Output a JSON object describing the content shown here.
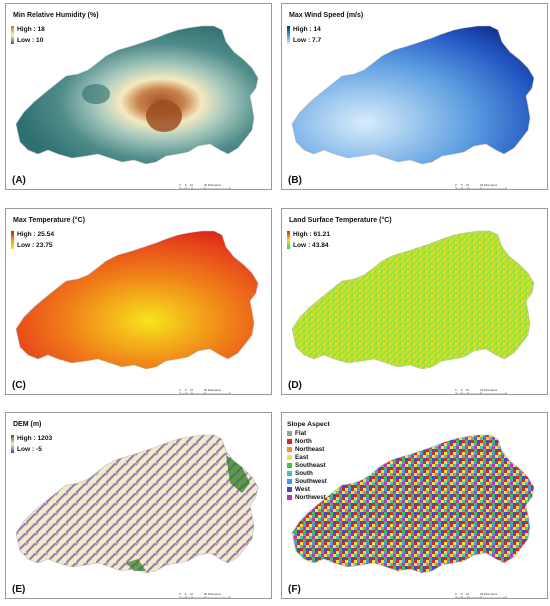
{
  "panels": [
    {
      "id": "A",
      "title": "Min Relative Humidity (%)",
      "high": "High : 18",
      "low": "Low : 10",
      "label": "(A)",
      "ramp": [
        "#d66a1a",
        "#f6eec4",
        "#2b6f6f"
      ]
    },
    {
      "id": "B",
      "title": "Max Wind Speed (m/s)",
      "high": "High : 14",
      "low": "Low : 7.7",
      "label": "(B)",
      "ramp": [
        "#0d2a8a",
        "#4b8fd6",
        "#d8ecfb"
      ]
    },
    {
      "id": "C",
      "title": "Max Temperature (°C)",
      "high": "High : 25.54",
      "low": "Low : 23.75",
      "label": "(C)",
      "ramp": [
        "#d8151a",
        "#f29a1a",
        "#f6e61c"
      ]
    },
    {
      "id": "D",
      "title": "Land Surface Temperature (°C)",
      "high": "High : 61.21",
      "low": "Low : 43.84",
      "label": "(D)",
      "ramp": [
        "#e0201a",
        "#f3e11d",
        "#2ed64a"
      ]
    },
    {
      "id": "E",
      "title": "DEM (m)",
      "high": "High : 1203",
      "low": "Low : -5",
      "label": "(E)",
      "ramp": [
        "#1f6a1f",
        "#f3efc3",
        "#6a2ca0"
      ]
    },
    {
      "id": "F",
      "title": "Slope Aspect",
      "label": "(F)"
    }
  ],
  "scale": {
    "ticks": [
      "0",
      "5",
      "10",
      "20 Kilometers"
    ]
  },
  "aspect_legend": [
    {
      "label": "Flat",
      "color": "#9e9e9e"
    },
    {
      "label": "North",
      "color": "#e3211f"
    },
    {
      "label": "Northeast",
      "color": "#f2912b"
    },
    {
      "label": "East",
      "color": "#f2e33a"
    },
    {
      "label": "Southeast",
      "color": "#39c443"
    },
    {
      "label": "South",
      "color": "#36c6c0"
    },
    {
      "label": "Southwest",
      "color": "#3c9ae6"
    },
    {
      "label": "West",
      "color": "#3a4ad7"
    },
    {
      "label": "Northwest",
      "color": "#c62fb5"
    }
  ]
}
